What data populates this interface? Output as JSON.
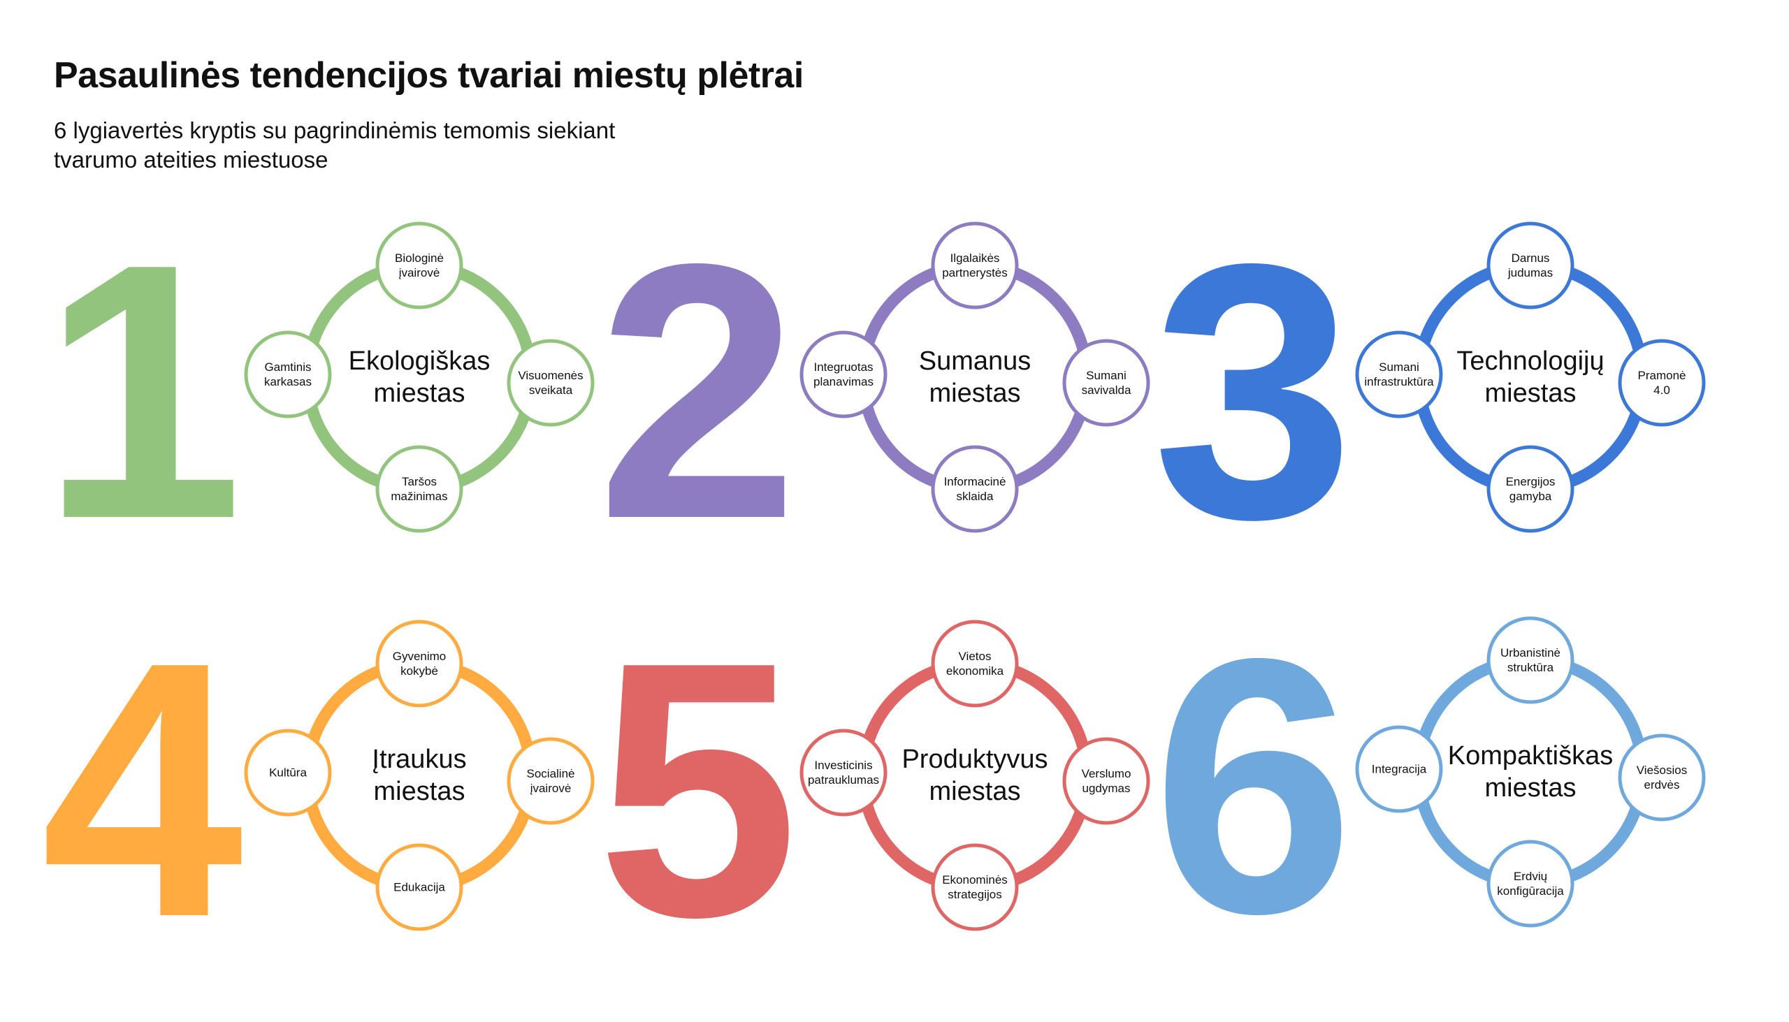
{
  "header": {
    "title": "Pasaulinės tendencijos tvariai miestų plėtrai",
    "subtitle_line1": "6 lygiavertės kryptis su pagrindinėmis temomis siekiant",
    "subtitle_line2": "tvarumo ateities miestuose"
  },
  "directions": [
    {
      "number": "1",
      "color": "#93C47D",
      "center": [
        "Ekologiškas",
        "miestas"
      ],
      "nodes": {
        "top": [
          "Biologinė",
          "įvairovė"
        ],
        "right": [
          "Visuomenės",
          "sveikata"
        ],
        "bottom": [
          "Taršos",
          "mažinimas"
        ],
        "left": [
          "Gamtinis",
          "karkasas"
        ]
      }
    },
    {
      "number": "2",
      "color": "#8E7CC3",
      "center": [
        "Sumanus",
        "miestas"
      ],
      "nodes": {
        "top": [
          "Ilgalaikės",
          "partnerystės"
        ],
        "right": [
          "Sumani",
          "savivalda"
        ],
        "bottom": [
          "Informacinė",
          "sklaida"
        ],
        "left": [
          "Integruotas",
          "planavimas"
        ]
      }
    },
    {
      "number": "3",
      "color": "#3C78D8",
      "center": [
        "Technologijų",
        "miestas"
      ],
      "nodes": {
        "top": [
          "Darnus",
          "judumas"
        ],
        "right": [
          "Pramonė",
          "4.0"
        ],
        "bottom": [
          "Energijos",
          "gamyba"
        ],
        "left": [
          "Sumani",
          "infrastruktūra"
        ]
      }
    },
    {
      "number": "4",
      "color": "#FFAB40",
      "center": [
        "Įtraukus",
        "miestas"
      ],
      "nodes": {
        "top": [
          "Gyvenimo",
          "kokybė"
        ],
        "right": [
          "Socialinė",
          "įvairovė"
        ],
        "bottom": [
          "Edukacija"
        ],
        "left": [
          "Kultūra"
        ]
      }
    },
    {
      "number": "5",
      "color": "#E06666",
      "center": [
        "Produktyvus",
        "miestas"
      ],
      "nodes": {
        "top": [
          "Vietos",
          "ekonomika"
        ],
        "right": [
          "Verslumo",
          "ugdymas"
        ],
        "bottom": [
          "Ekonominės",
          "strategijos"
        ],
        "left": [
          "Investicinis",
          "patrauklumas"
        ]
      }
    },
    {
      "number": "6",
      "color": "#6FA8DC",
      "center": [
        "Kompaktiškas",
        "miestas"
      ],
      "nodes": {
        "top": [
          "Urbanistinė",
          "struktūra"
        ],
        "right": [
          "Viešosios",
          "erdvės"
        ],
        "bottom": [
          "Erdvių",
          "konfigūracija"
        ],
        "left": [
          "Integracija"
        ]
      }
    }
  ]
}
